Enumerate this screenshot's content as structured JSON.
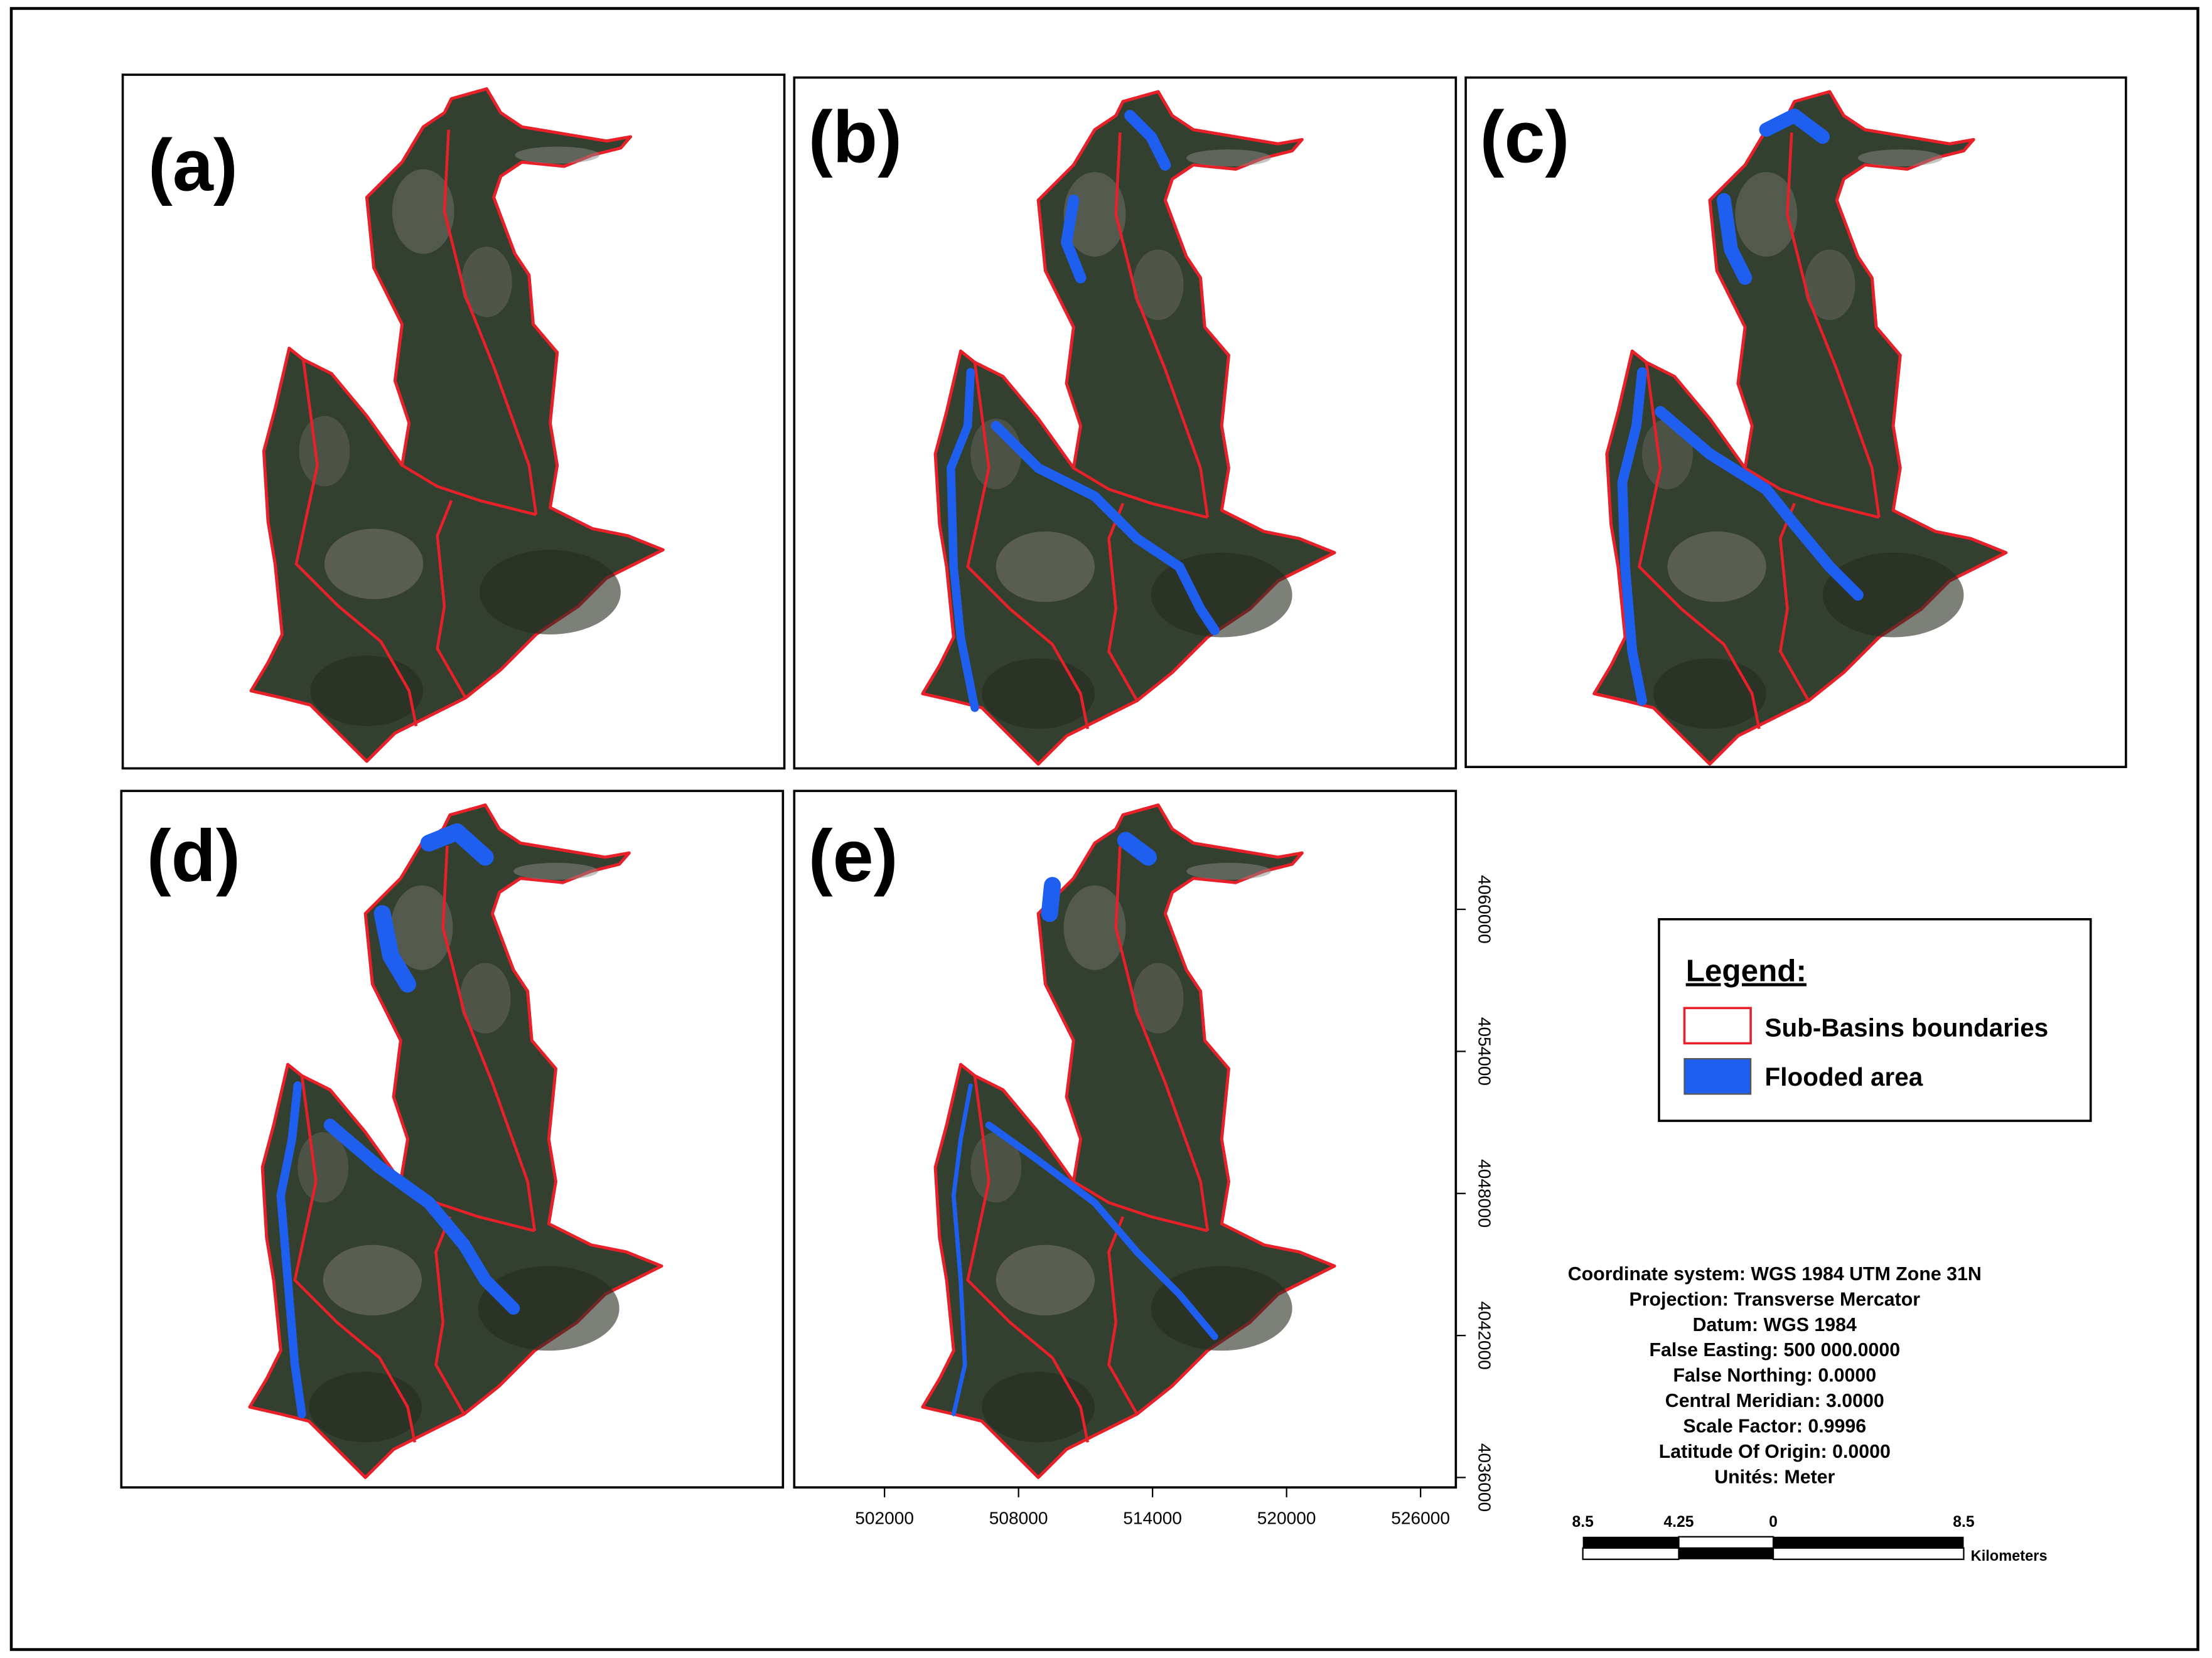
{
  "panels": [
    {
      "label": "(a)"
    },
    {
      "label": "(b)"
    },
    {
      "label": "(c)"
    },
    {
      "label": "(d)"
    },
    {
      "label": "(e)"
    }
  ],
  "legend": {
    "title": "Legend:",
    "items": [
      "Sub-Basins boundaries",
      "Flooded area"
    ]
  },
  "axes": {
    "x_ticks": [
      502000,
      508000,
      514000,
      520000,
      526000
    ],
    "y_ticks": [
      4036000,
      4042000,
      4048000,
      4054000,
      4060000
    ]
  },
  "projection_info": [
    "Coordinate system: WGS 1984 UTM Zone 31N",
    "Projection: Transverse Mercator",
    "Datum: WGS 1984",
    "False Easting: 500 000.0000",
    "False Northing: 0.0000",
    "Central Meridian: 3.0000",
    "Scale Factor: 0.9996",
    "Latitude Of Origin: 0.0000",
    "Unités: Meter"
  ],
  "scale_bar": {
    "labels": [
      8.5,
      4.25,
      0,
      8.5
    ],
    "unit": "Kilometers"
  }
}
